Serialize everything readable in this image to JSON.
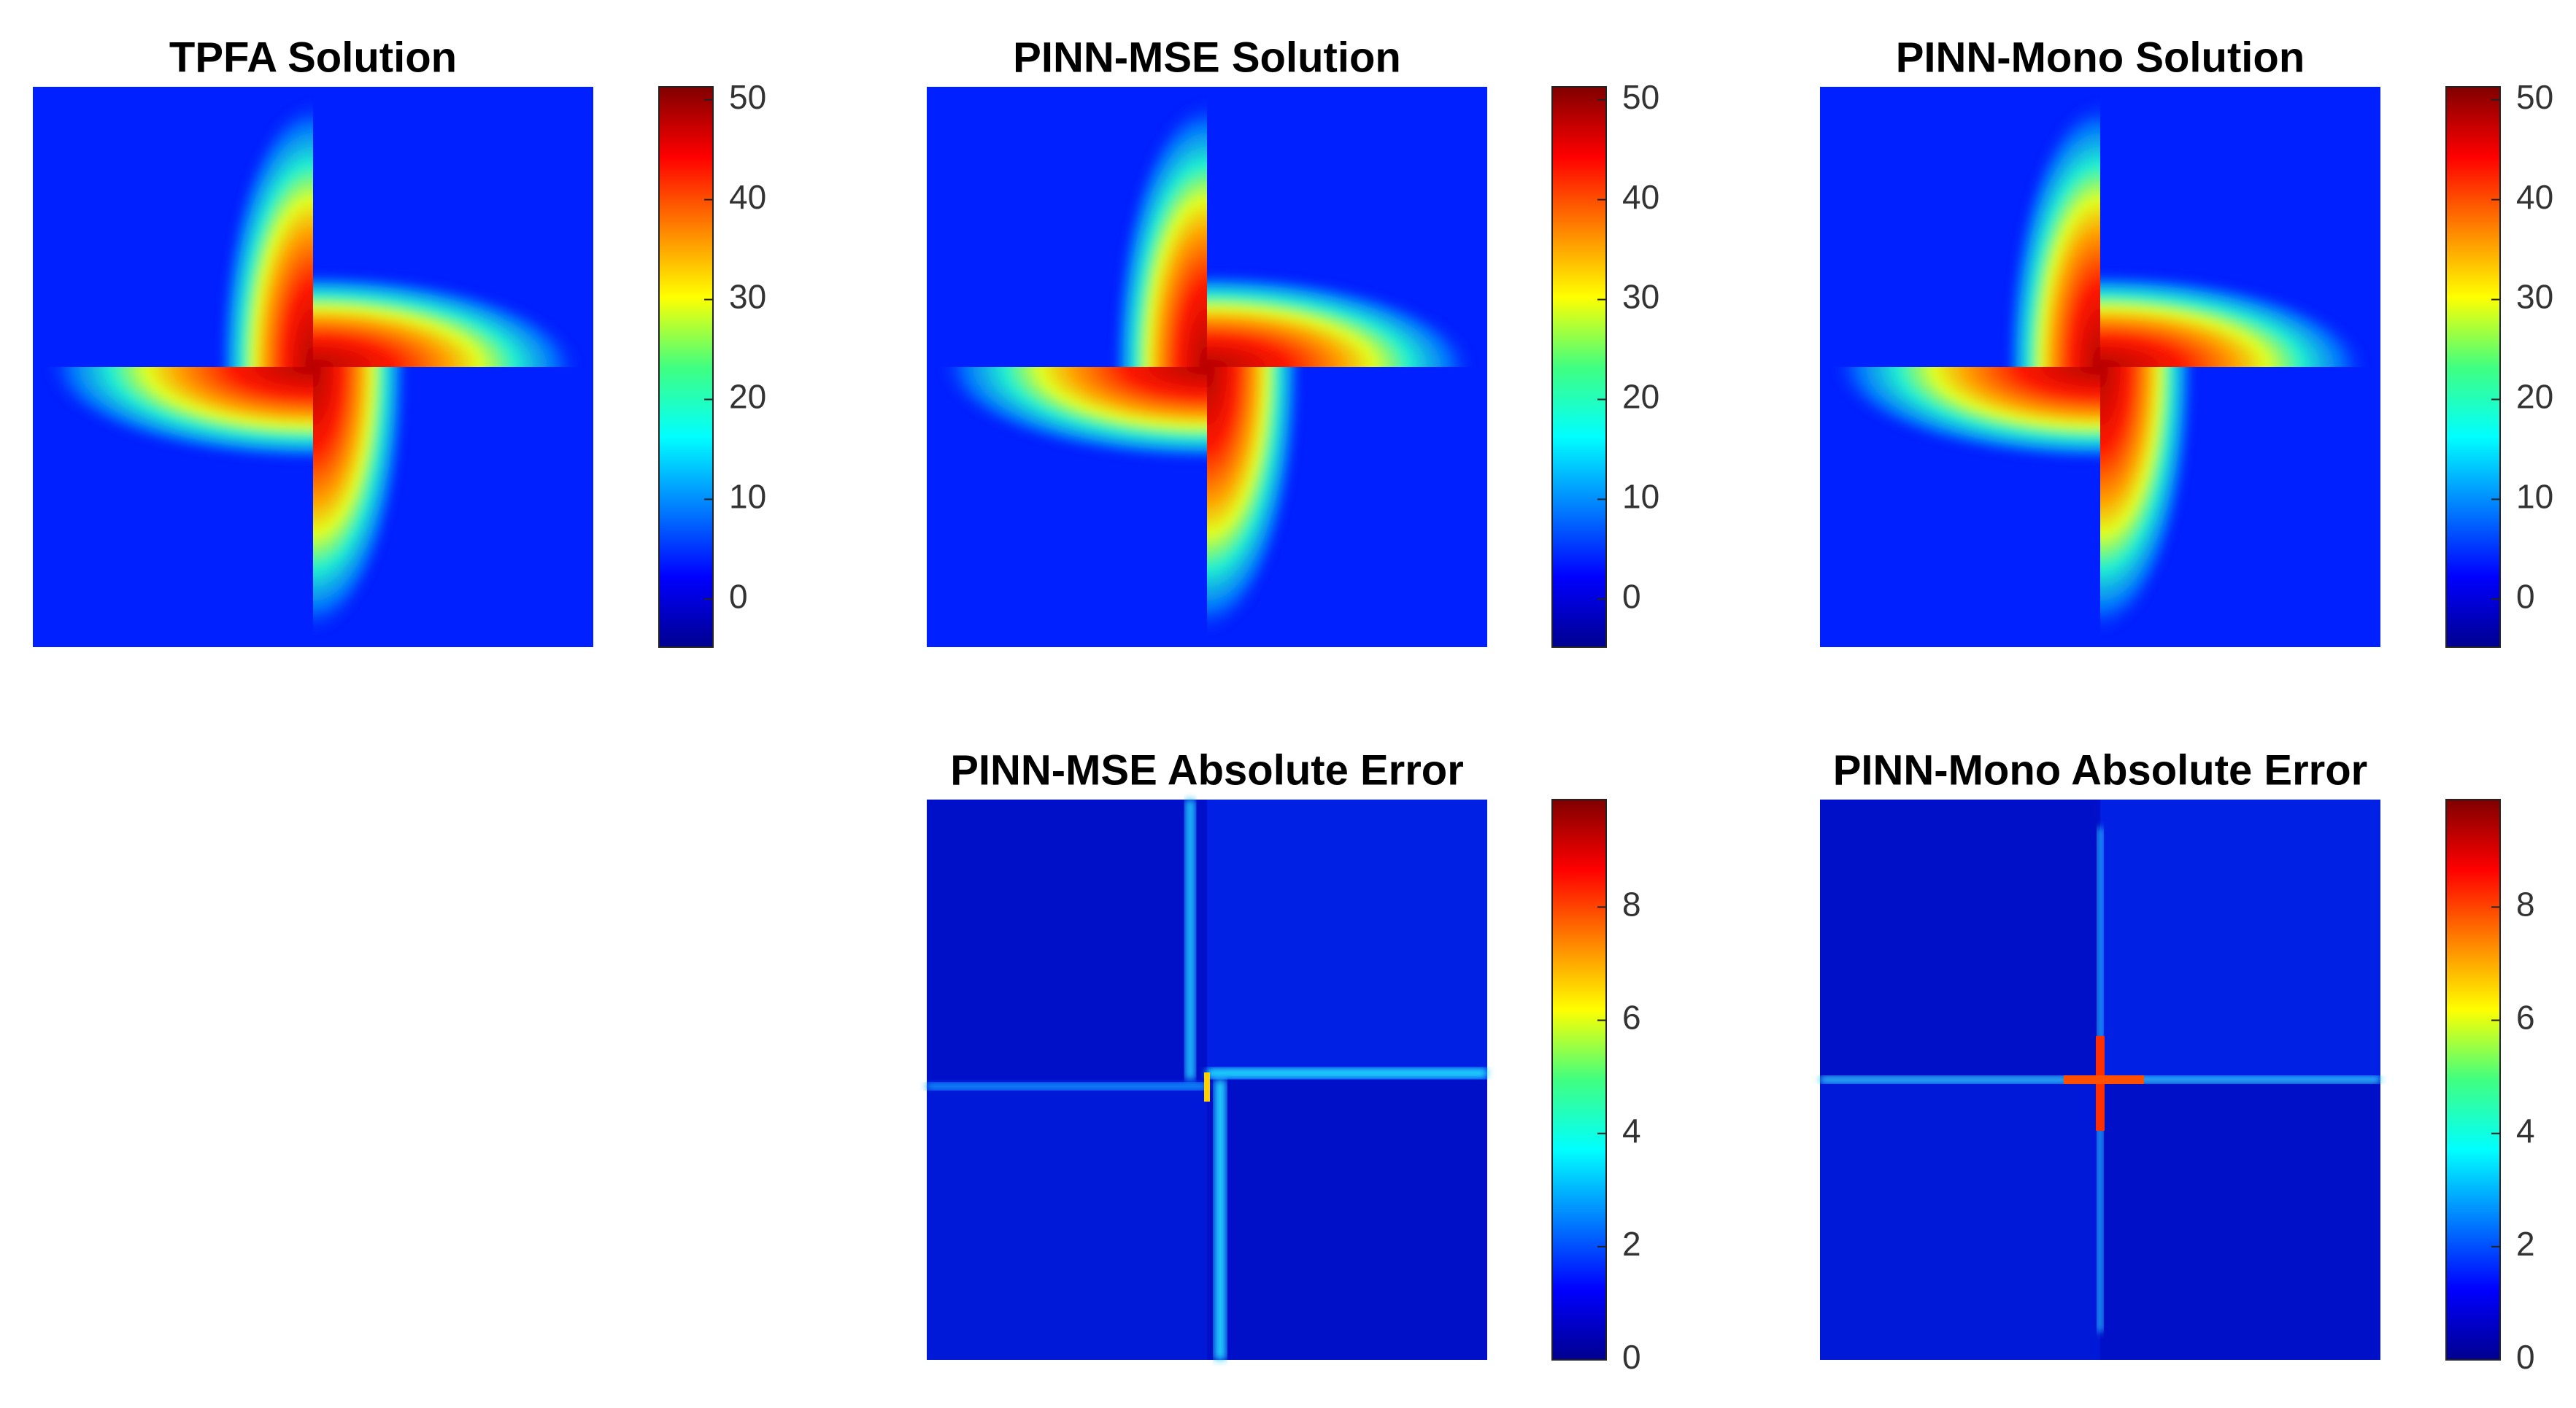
{
  "chart_data": [
    {
      "type": "heatmap",
      "title": "TPFA Solution",
      "colormap": "jet",
      "clim": [
        -4.8,
        51.3
      ],
      "cticks": [
        0,
        10,
        20,
        30,
        40,
        50
      ]
    },
    {
      "type": "heatmap",
      "title": "PINN-MSE Solution",
      "colormap": "jet",
      "clim": [
        -4.8,
        51.3
      ],
      "cticks": [
        0,
        10,
        20,
        30,
        40,
        50
      ]
    },
    {
      "type": "heatmap",
      "title": "PINN-Mono Solution",
      "colormap": "jet",
      "clim": [
        -4.8,
        51.3
      ],
      "cticks": [
        0,
        10,
        20,
        30,
        40,
        50
      ]
    },
    {
      "type": "heatmap",
      "title": "PINN-MSE Absolute Error",
      "colormap": "jet",
      "clim": [
        0,
        9.9
      ],
      "cticks": [
        0,
        2,
        4,
        6,
        8
      ]
    },
    {
      "type": "heatmap",
      "title": "PINN-Mono Absolute Error",
      "colormap": "jet",
      "clim": [
        0,
        9.9
      ],
      "cticks": [
        0,
        2,
        4,
        6,
        8
      ]
    }
  ]
}
